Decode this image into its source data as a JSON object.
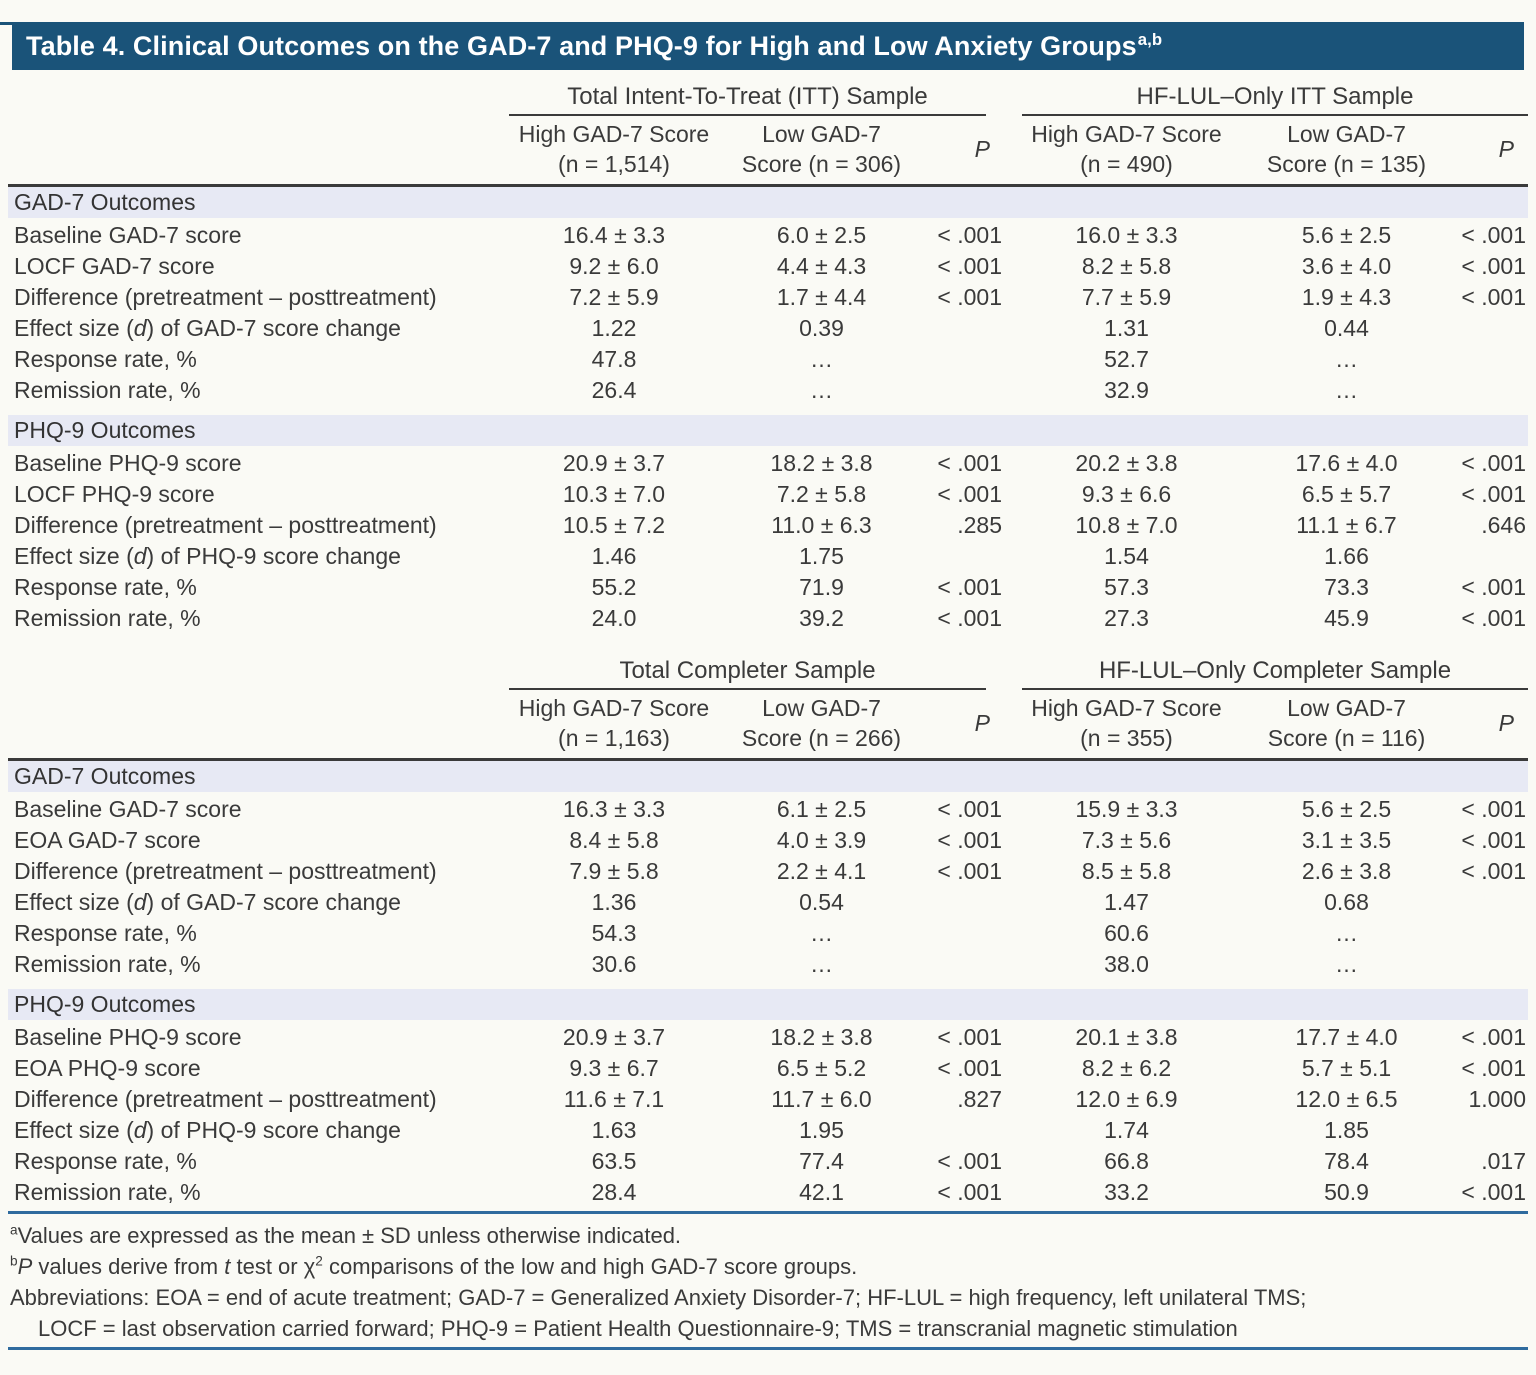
{
  "title": "Table 4. Clinical Outcomes on the GAD-7 and PHQ-9 for High and Low Anxiety Groups^a,b^",
  "colors": {
    "title_bar": "#1a5379",
    "title_text": "#ffffff",
    "section_band": "#e7e9f4",
    "rule_blue": "#2f6b9e",
    "rule_dark": "#3a3a3a",
    "text": "#3a3a3a",
    "page_bg": "#fafaf5"
  },
  "table": {
    "halves": [
      {
        "groups": [
          {
            "label": "Total Intent-To-Treat (ITT) Sample",
            "cols": [
              "High GAD-7 Score\n(n = 1,514)",
              "Low GAD-7\nScore (n = 306)",
              "*P*"
            ]
          },
          {
            "label": "HF-LUL–Only ITT Sample",
            "cols": [
              "High GAD-7 Score\n(n = 490)",
              "Low GAD-7\nScore (n = 135)",
              "*P*"
            ]
          }
        ],
        "sections": [
          {
            "heading": "GAD-7 Outcomes",
            "rows": [
              {
                "label": "Baseline GAD-7 score",
                "values": [
                  "16.4 ± 3.3",
                  "6.0 ± 2.5",
                  "< .001",
                  "16.0 ± 3.3",
                  "5.6 ± 2.5",
                  "< .001"
                ]
              },
              {
                "label": "LOCF GAD-7 score",
                "values": [
                  "9.2 ± 6.0",
                  "4.4 ± 4.3",
                  "< .001",
                  "8.2 ± 5.8",
                  "3.6 ± 4.0",
                  "< .001"
                ]
              },
              {
                "label": "Difference (pretreatment – posttreatment)",
                "values": [
                  "7.2 ± 5.9",
                  "1.7 ± 4.4",
                  "< .001",
                  "7.7 ± 5.9",
                  "1.9 ± 4.3",
                  "< .001"
                ]
              },
              {
                "label": "Effect size (*d*) of GAD-7 score change",
                "values": [
                  "1.22",
                  "0.39",
                  "",
                  "1.31",
                  "0.44",
                  ""
                ]
              },
              {
                "label": "Response rate, %",
                "values": [
                  "47.8",
                  "…",
                  "",
                  "52.7",
                  "…",
                  ""
                ]
              },
              {
                "label": "Remission rate, %",
                "values": [
                  "26.4",
                  "…",
                  "",
                  "32.9",
                  "…",
                  ""
                ]
              }
            ]
          },
          {
            "heading": "PHQ-9 Outcomes",
            "rows": [
              {
                "label": "Baseline PHQ-9 score",
                "values": [
                  "20.9 ± 3.7",
                  "18.2 ± 3.8",
                  "< .001",
                  "20.2 ± 3.8",
                  "17.6 ± 4.0",
                  "< .001"
                ]
              },
              {
                "label": "LOCF PHQ-9 score",
                "values": [
                  "10.3 ± 7.0",
                  "7.2 ± 5.8",
                  "< .001",
                  "9.3 ± 6.6",
                  "6.5 ± 5.7",
                  "< .001"
                ]
              },
              {
                "label": "Difference (pretreatment – posttreatment)",
                "values": [
                  "10.5 ± 7.2",
                  "11.0 ± 6.3",
                  ".285",
                  "10.8 ± 7.0",
                  "11.1 ± 6.7",
                  ".646"
                ]
              },
              {
                "label": "Effect size (*d*) of PHQ-9 score change",
                "values": [
                  "1.46",
                  "1.75",
                  "",
                  "1.54",
                  "1.66",
                  ""
                ]
              },
              {
                "label": "Response rate, %",
                "values": [
                  "55.2",
                  "71.9",
                  "< .001",
                  "57.3",
                  "73.3",
                  "< .001"
                ]
              },
              {
                "label": "Remission rate, %",
                "values": [
                  "24.0",
                  "39.2",
                  "< .001",
                  "27.3",
                  "45.9",
                  "< .001"
                ]
              }
            ]
          }
        ]
      },
      {
        "groups": [
          {
            "label": "Total Completer Sample",
            "cols": [
              "High GAD-7 Score\n(n = 1,163)",
              "Low GAD-7\nScore (n = 266)",
              "*P*"
            ]
          },
          {
            "label": "HF-LUL–Only Completer Sample",
            "cols": [
              "High GAD-7 Score\n(n = 355)",
              "Low GAD-7\nScore (n = 116)",
              "*P*"
            ]
          }
        ],
        "sections": [
          {
            "heading": "GAD-7 Outcomes",
            "rows": [
              {
                "label": "Baseline GAD-7 score",
                "values": [
                  "16.3 ± 3.3",
                  "6.1 ± 2.5",
                  "< .001",
                  "15.9 ± 3.3",
                  "5.6 ± 2.5",
                  "< .001"
                ]
              },
              {
                "label": "EOA GAD-7 score",
                "values": [
                  "8.4 ± 5.8",
                  "4.0 ± 3.9",
                  "< .001",
                  "7.3 ± 5.6",
                  "3.1 ± 3.5",
                  "< .001"
                ]
              },
              {
                "label": "Difference (pretreatment – posttreatment)",
                "values": [
                  "7.9 ± 5.8",
                  "2.2 ± 4.1",
                  "< .001",
                  "8.5 ± 5.8",
                  "2.6 ± 3.8",
                  "< .001"
                ]
              },
              {
                "label": "Effect size (*d*) of GAD-7 score change",
                "values": [
                  "1.36",
                  "0.54",
                  "",
                  "1.47",
                  "0.68",
                  ""
                ]
              },
              {
                "label": "Response rate, %",
                "values": [
                  "54.3",
                  "…",
                  "",
                  "60.6",
                  "…",
                  ""
                ]
              },
              {
                "label": "Remission rate, %",
                "values": [
                  "30.6",
                  "…",
                  "",
                  "38.0",
                  "…",
                  ""
                ]
              }
            ]
          },
          {
            "heading": "PHQ-9 Outcomes",
            "rows": [
              {
                "label": "Baseline PHQ-9 score",
                "values": [
                  "20.9 ± 3.7",
                  "18.2 ± 3.8",
                  "< .001",
                  "20.1 ± 3.8",
                  "17.7 ± 4.0",
                  "< .001"
                ]
              },
              {
                "label": "EOA PHQ-9 score",
                "values": [
                  "9.3 ± 6.7",
                  "6.5 ± 5.2",
                  "< .001",
                  "8.2 ± 6.2",
                  "5.7 ± 5.1",
                  "< .001"
                ]
              },
              {
                "label": "Difference (pretreatment – posttreatment)",
                "values": [
                  "11.6 ± 7.1",
                  "11.7 ± 6.0",
                  ".827",
                  "12.0 ± 6.9",
                  "12.0 ± 6.5",
                  "1.000"
                ]
              },
              {
                "label": "Effect size (*d*) of PHQ-9 score change",
                "values": [
                  "1.63",
                  "1.95",
                  "",
                  "1.74",
                  "1.85",
                  ""
                ]
              },
              {
                "label": "Response rate, %",
                "values": [
                  "63.5",
                  "77.4",
                  "< .001",
                  "66.8",
                  "78.4",
                  ".017"
                ]
              },
              {
                "label": "Remission rate, %",
                "values": [
                  "28.4",
                  "42.1",
                  "< .001",
                  "33.2",
                  "50.9",
                  "< .001"
                ]
              }
            ]
          }
        ]
      }
    ]
  },
  "footnotes": [
    "^a^Values are expressed as the mean ± SD unless otherwise indicated.",
    "^b^*P* values derive from *t* test or χ^2^ comparisons of the low and high GAD-7 score groups.",
    "Abbreviations: EOA = end of acute treatment; GAD-7 = Generalized Anxiety Disorder-7; HF-LUL = high frequency, left unilateral TMS;",
    "LOCF = last observation carried forward; PHQ-9 = Patient Health Questionnaire-9; TMS = transcranial magnetic stimulation"
  ]
}
